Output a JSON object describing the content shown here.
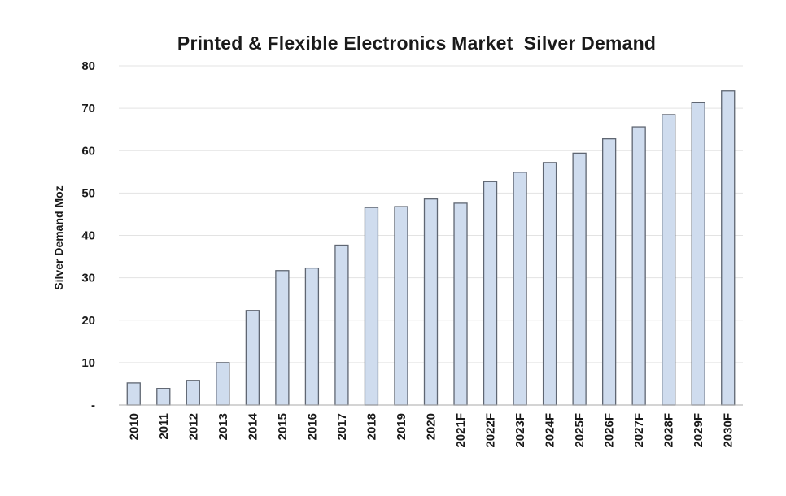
{
  "chart_data": {
    "type": "bar",
    "title": "Printed & Flexible Electronics Market  Silver Demand",
    "ylabel": "Silver Demand Moz",
    "xlabel": "",
    "categories": [
      "2010",
      "2011",
      "2012",
      "2013",
      "2014",
      "2015",
      "2016",
      "2017",
      "2018",
      "2019",
      "2020",
      "2021F",
      "2022F",
      "2023F",
      "2024F",
      "2025F",
      "2026F",
      "2027F",
      "2028F",
      "2029F",
      "2030F"
    ],
    "values": [
      5.2,
      3.9,
      5.8,
      10.0,
      22.3,
      31.7,
      32.3,
      37.7,
      46.6,
      46.8,
      48.6,
      47.6,
      52.7,
      54.9,
      57.2,
      59.4,
      62.8,
      65.6,
      68.5,
      71.3,
      74.1
    ],
    "ylim": [
      0,
      80
    ],
    "yticks": [
      0,
      10,
      20,
      30,
      40,
      50,
      60,
      70,
      80
    ],
    "ytick_labels": [
      "-",
      "10",
      "20",
      "30",
      "40",
      "50",
      "60",
      "70",
      "80"
    ],
    "grid": true,
    "legend": "none",
    "colors": {
      "bar_fill": "#cfdcee",
      "bar_edge": "#5f6672",
      "grid": "#e3e3e3",
      "axis": "#a9a9a9"
    }
  }
}
